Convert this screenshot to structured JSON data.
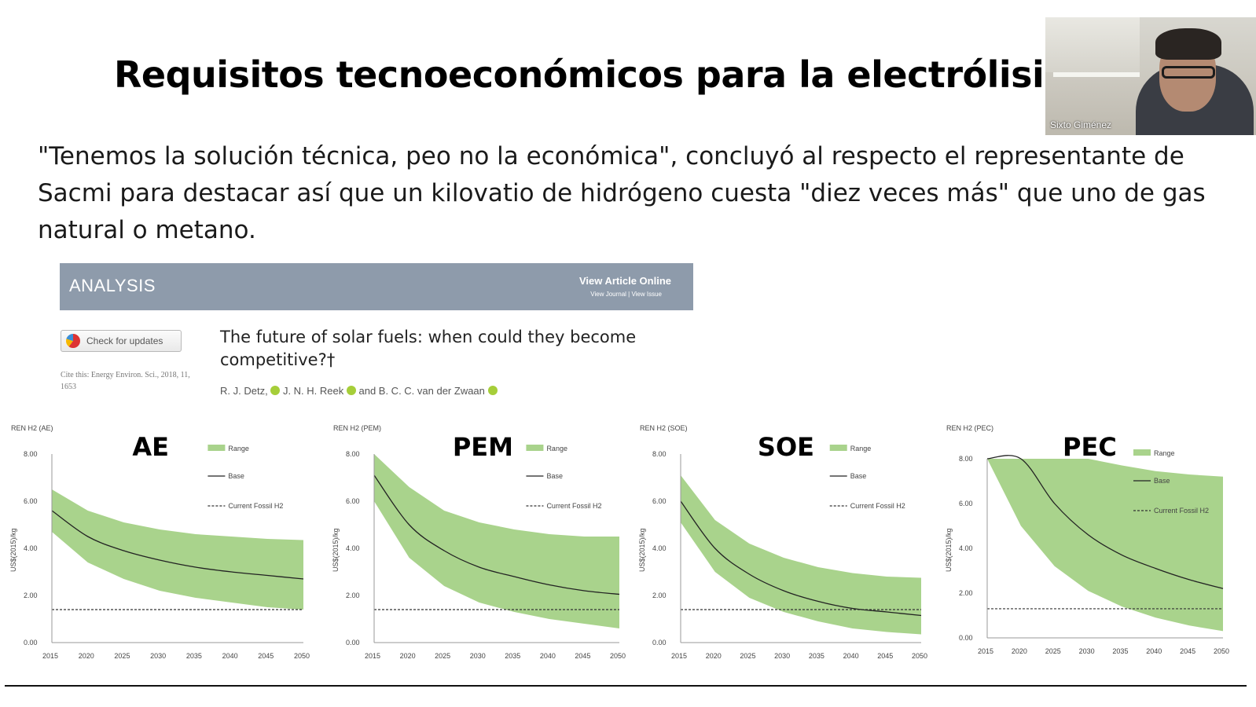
{
  "slide": {
    "title": "Requisitos tecnoeconómicos para la electrólisis",
    "quote": "\"Tenemos la solución técnica, peo no la económica\", concluyó al respecto el representante de Sacmi para destacar así que un kilovatio de hidrógeno cuesta \"diez veces más\" que uno de gas natural o metano."
  },
  "webcam": {
    "name": "Sixto Giménez"
  },
  "article": {
    "section": "ANALYSIS",
    "view_online": "View Article Online",
    "view_links": "View Journal | View Issue",
    "check_updates": "Check for updates",
    "cite": "Cite this: Energy Environ. Sci., 2018, 11, 1653",
    "title": "The future of solar fuels: when could they become competitive?†",
    "authors": [
      "R. J. Detz,",
      "J. N. H. Reek",
      "and B. C. C. van der Zwaan"
    ]
  },
  "chart_data": [
    {
      "type": "area",
      "title": "AE",
      "corner_label": "REN H2 (AE)",
      "ylabel": "US$(2015)/kg",
      "ylim": [
        0,
        8
      ],
      "yticks": [
        "0.00",
        "2.00",
        "4.00",
        "6.00",
        "8.00"
      ],
      "x": [
        2015,
        2020,
        2025,
        2030,
        2035,
        2040,
        2045,
        2050
      ],
      "series": [
        {
          "name": "Range",
          "upper": [
            6.5,
            5.6,
            5.1,
            4.8,
            4.6,
            4.5,
            4.4,
            4.35
          ],
          "lower": [
            4.7,
            3.4,
            2.7,
            2.2,
            1.9,
            1.7,
            1.5,
            1.4
          ]
        },
        {
          "name": "Base",
          "values": [
            5.6,
            4.5,
            3.9,
            3.5,
            3.2,
            3.0,
            2.85,
            2.7
          ]
        },
        {
          "name": "Current Fossil H2",
          "values": [
            1.4,
            1.4,
            1.4,
            1.4,
            1.4,
            1.4,
            1.4,
            1.4
          ]
        }
      ]
    },
    {
      "type": "area",
      "title": "PEM",
      "corner_label": "REN H2 (PEM)",
      "ylabel": "US$(2015)/kg",
      "ylim": [
        0,
        8
      ],
      "yticks": [
        "0.00",
        "2.00",
        "4.00",
        "6.00",
        "8.00"
      ],
      "x": [
        2015,
        2020,
        2025,
        2030,
        2035,
        2040,
        2045,
        2050
      ],
      "series": [
        {
          "name": "Range",
          "upper": [
            8.0,
            6.6,
            5.6,
            5.1,
            4.8,
            4.6,
            4.5,
            4.5
          ],
          "lower": [
            6.0,
            3.6,
            2.4,
            1.7,
            1.3,
            1.0,
            0.8,
            0.6
          ]
        },
        {
          "name": "Base",
          "values": [
            7.1,
            5.0,
            3.9,
            3.2,
            2.8,
            2.45,
            2.2,
            2.05
          ]
        },
        {
          "name": "Current Fossil H2",
          "values": [
            1.4,
            1.4,
            1.4,
            1.4,
            1.4,
            1.4,
            1.4,
            1.4
          ]
        }
      ]
    },
    {
      "type": "area",
      "title": "SOE",
      "corner_label": "REN H2 (SOE)",
      "ylabel": "US$(2015)/kg",
      "ylim": [
        0,
        8
      ],
      "yticks": [
        "0.00",
        "2.00",
        "4.00",
        "6.00",
        "8.00"
      ],
      "x": [
        2015,
        2020,
        2025,
        2030,
        2035,
        2040,
        2045,
        2050
      ],
      "series": [
        {
          "name": "Range",
          "upper": [
            7.1,
            5.2,
            4.2,
            3.6,
            3.2,
            2.95,
            2.8,
            2.75
          ],
          "lower": [
            5.1,
            3.0,
            1.9,
            1.3,
            0.9,
            0.6,
            0.45,
            0.35
          ]
        },
        {
          "name": "Base",
          "values": [
            6.0,
            4.0,
            2.9,
            2.2,
            1.75,
            1.45,
            1.3,
            1.15
          ]
        },
        {
          "name": "Current Fossil H2",
          "values": [
            1.4,
            1.4,
            1.4,
            1.4,
            1.4,
            1.4,
            1.4,
            1.4
          ]
        }
      ]
    },
    {
      "type": "area",
      "title": "PEC",
      "corner_label": "REN H2 (PEC)",
      "ylabel": "US$(2015)/kg",
      "ylim": [
        0,
        8
      ],
      "yticks": [
        "0.00",
        "2.00",
        "4.00",
        "6.00",
        "8.00"
      ],
      "x": [
        2015,
        2020,
        2025,
        2030,
        2035,
        2040,
        2045,
        2050
      ],
      "series": [
        {
          "name": "Range",
          "upper": [
            8.0,
            8.0,
            8.0,
            8.0,
            7.7,
            7.45,
            7.3,
            7.2
          ],
          "lower": [
            8.0,
            5.0,
            3.2,
            2.1,
            1.4,
            0.9,
            0.55,
            0.3
          ]
        },
        {
          "name": "Base",
          "values": [
            8.0,
            8.0,
            6.0,
            4.6,
            3.7,
            3.1,
            2.6,
            2.2
          ]
        },
        {
          "name": "Current Fossil H2",
          "values": [
            1.3,
            1.3,
            1.3,
            1.3,
            1.3,
            1.3,
            1.3,
            1.3
          ]
        }
      ]
    }
  ],
  "colors": {
    "range": "#a9d38c",
    "header": "#8e9bab"
  }
}
